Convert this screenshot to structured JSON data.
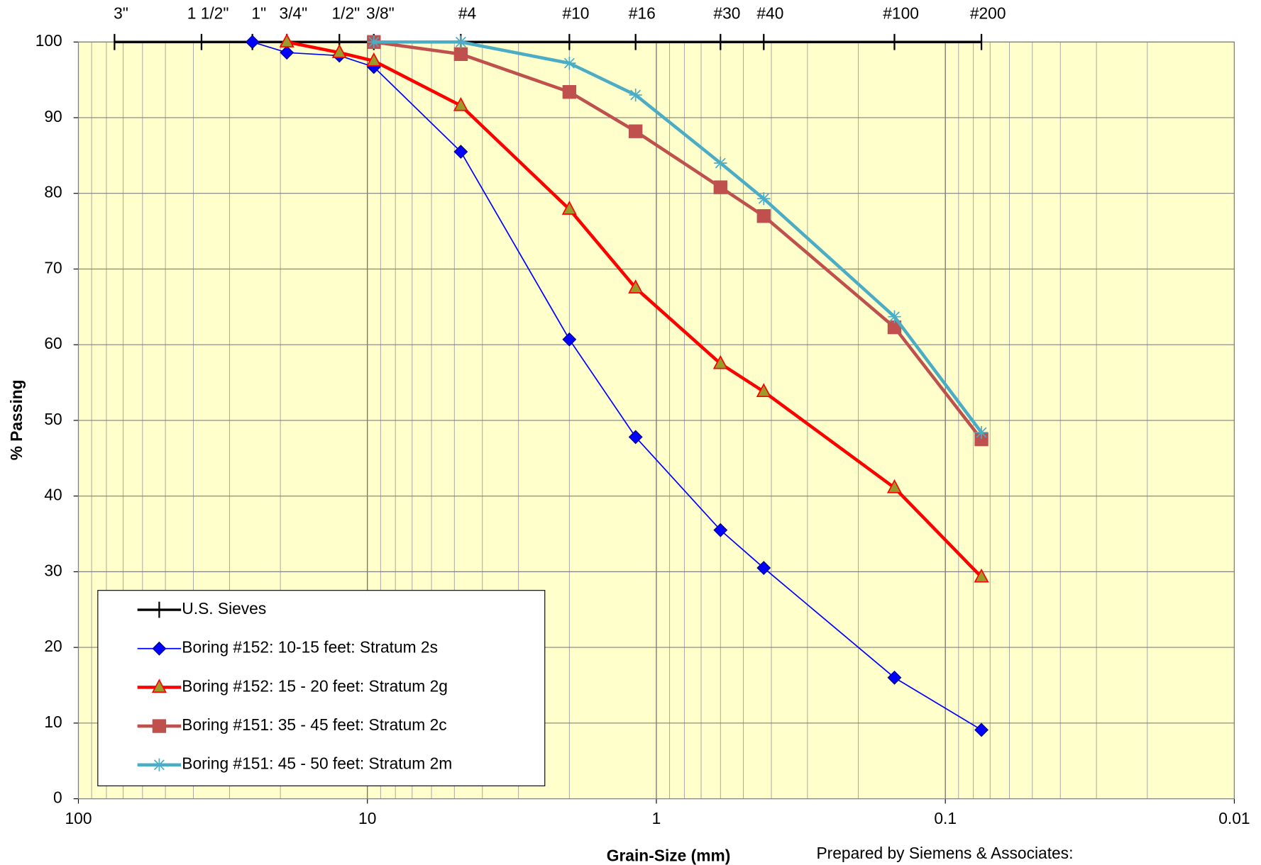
{
  "chart_data": {
    "type": "line",
    "x_label": "Grain-Size (mm)",
    "y_label": "% Passing",
    "annotation": "Prepared by Siemens & Associates:",
    "xscale": "log",
    "xlim": [
      100,
      0.01
    ],
    "xticks": [
      100,
      10,
      1,
      0.1,
      0.01
    ],
    "ylim": [
      0,
      100
    ],
    "yticks": [
      0,
      10,
      20,
      30,
      40,
      50,
      60,
      70,
      80,
      90,
      100
    ],
    "grid": true,
    "legend": "lower left",
    "background": "#ffffcc",
    "series": [
      {
        "name": "U.S. Sieves",
        "color": "#000000",
        "marker": "plus",
        "top_labels": [
          "3\"",
          "1 1/2\"",
          "1\"",
          "3/4\"",
          "1/2\"",
          "3/8\"",
          "#4",
          "#10",
          "#16",
          "#30",
          "#40",
          "#100",
          "#200"
        ],
        "x": [
          75,
          37.5,
          25,
          19,
          12.5,
          9.5,
          4.75,
          2,
          1.18,
          0.6,
          0.425,
          0.15,
          0.075
        ],
        "values": [
          100,
          100,
          100,
          100,
          100,
          100,
          100,
          100,
          100,
          100,
          100,
          100,
          100
        ]
      },
      {
        "name": "Boring #152: 10-15 feet: Stratum 2s",
        "color": "#0000ff",
        "marker": "diamond",
        "x": [
          25,
          19,
          12.5,
          9.5,
          4.75,
          2,
          1.18,
          0.6,
          0.425,
          0.15,
          0.075
        ],
        "values": [
          100,
          98.6,
          98.2,
          96.7,
          85.5,
          60.7,
          47.8,
          35.5,
          30.5,
          16.0,
          9.1
        ]
      },
      {
        "name": "Boring #152: 15 - 20 feet: Stratum 2g",
        "color": "#ff0000",
        "marker": "triangle",
        "x": [
          19,
          12.5,
          9.5,
          4.75,
          2,
          1.18,
          0.6,
          0.425,
          0.15,
          0.075
        ],
        "values": [
          100,
          98.6,
          97.5,
          91.6,
          77.9,
          67.5,
          57.5,
          53.8,
          41.1,
          29.3
        ]
      },
      {
        "name": "Boring #151: 35 - 45 feet: Stratum 2c",
        "color": "#c0504d",
        "marker": "square",
        "x": [
          9.5,
          4.75,
          2,
          1.18,
          0.6,
          0.425,
          0.15,
          0.075
        ],
        "values": [
          100,
          98.4,
          93.4,
          88.2,
          80.8,
          77.0,
          62.3,
          47.5
        ]
      },
      {
        "name": "Boring #151: 45 - 50 feet: Stratum 2m",
        "color": "#4bacc6",
        "marker": "star",
        "x": [
          9.5,
          4.75,
          2,
          1.18,
          0.6,
          0.425,
          0.15,
          0.075
        ],
        "values": [
          100,
          100,
          97.2,
          93.0,
          84.0,
          79.3,
          63.7,
          48.4
        ]
      }
    ]
  }
}
